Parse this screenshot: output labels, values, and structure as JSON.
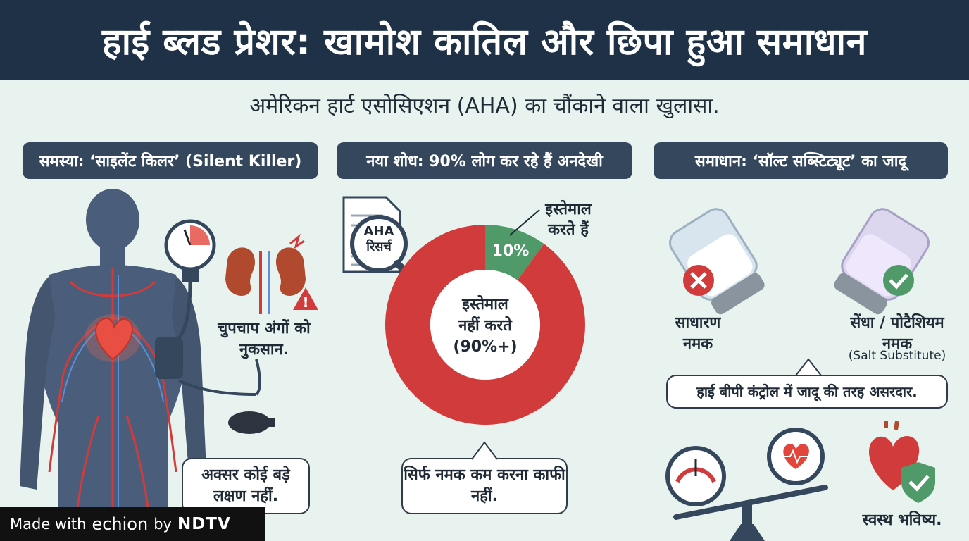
{
  "title": "हाई ब्लड प्रेशर: खामोश कातिल और छिपा हुआ समाधान",
  "subtitle": "अमेरिकन हार्ट एसोसिएशन (AHA) का चौंकाने वाला खुलासा.",
  "sections": [
    {
      "heading": "समस्या: ‘साइलेंट किलर’ (Silent Killer)"
    },
    {
      "heading": "नया शोध: 90% लोग कर रहे हैं अनदेखी"
    },
    {
      "heading": "समाधान: ‘सॉल्ट सब्स्टिट्यूट’ का जादू"
    }
  ],
  "problem": {
    "organ_damage": "चुपचाप अंगों को नुकसान.",
    "no_symptoms": "अक्सर कोई बड़े लक्षण नहीं."
  },
  "research": {
    "document_label": "AHA रिसर्च",
    "chart_data": {
      "type": "pie",
      "categories": [
        "इस्तेमाल करते हैं",
        "इस्तेमाल नहीं करते"
      ],
      "values": [
        10,
        90
      ],
      "labels": [
        "10%",
        "(90%+)"
      ],
      "colors": [
        "#4f9a68",
        "#d23b3b"
      ]
    },
    "use_label": "इस्तेमाल करते हैं",
    "center_label_1": "इस्तेमाल",
    "center_label_2": "नहीं करते",
    "center_label_3": "(90%+)",
    "slice_label": "10%",
    "callout": "सिर्फ नमक कम करना काफी नहीं."
  },
  "solution": {
    "regular_salt": "साधारण नमक",
    "substitute_salt": "सेंधा / पोटैशियम नमक",
    "substitute_en": "(Salt Substitute)",
    "effective": "हाई बीपी कंट्रोल में जादू की तरह असरदार.",
    "healthy_future": "स्वस्थ भविष्य."
  },
  "footer": {
    "made_with": "Made with",
    "brand": "echion",
    "by": "by",
    "partner": "NDTV"
  },
  "colors": {
    "header": "#1f3147",
    "pill": "#34475c",
    "red": "#d23b3b",
    "green": "#4f9a68",
    "bg": "#e8f3f0"
  }
}
